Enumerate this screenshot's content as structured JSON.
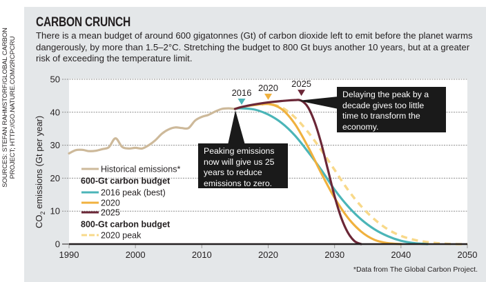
{
  "sources": "SOURCES: STEFAN RAHMSTORF/GLOBAL CARBON PROJECT; HTTP://GO.NATURE.COM/2RCPCRU",
  "title": "CARBON CRUNCH",
  "subtitle": "There is a mean budget of around 600 gigatonnes (Gt) of carbon dioxide left to emit before the planet warms dangerously, by more than 1.5–2°C. Stretching the budget to 800 Gt buys another 10 years, but at a greater risk of exceeding the temperature limit.",
  "footnote": "*Data from The Global Carbon Project.",
  "callouts": {
    "left": "Peaking emissions now will give us 25 years to reduce emissions to zero.",
    "right": "Delaying the peak by a decade gives too little time to transform the economy."
  },
  "colors": {
    "historical": "#cdb99a",
    "peak2016": "#4bb5b8",
    "peak2020": "#f0b13e",
    "peak2025": "#6b2737",
    "peak2020_800": "#f8d98a"
  },
  "chart_data": {
    "type": "line",
    "title": "CARBON CRUNCH",
    "xlabel": "",
    "ylabel": "CO2 emissions (Gt per year)",
    "ylabel_main": "CO",
    "ylabel_sub": "2",
    "ylabel_rest": " emissions (Gt per year)",
    "xlim": [
      1990,
      2050
    ],
    "ylim": [
      0,
      50
    ],
    "x_ticks": [
      "1990",
      "2000",
      "2010",
      "2020",
      "2030",
      "2040",
      "2050"
    ],
    "y_ticks": [
      "0",
      "10",
      "20",
      "30",
      "40",
      "50"
    ],
    "grid": "horizontal dotted",
    "legend": {
      "placement": "bottom-left",
      "items": [
        {
          "type": "entry",
          "label": "Historical emissions*",
          "series": "historical"
        },
        {
          "type": "header",
          "label": "600-Gt carbon budget"
        },
        {
          "type": "entry",
          "label": "2016 peak (best)",
          "series": "peak2016"
        },
        {
          "type": "entry",
          "label": "2020",
          "series": "peak2020"
        },
        {
          "type": "entry",
          "label": "2025",
          "series": "peak2025"
        },
        {
          "type": "header",
          "label": "800-Gt carbon budget"
        },
        {
          "type": "entry",
          "label": "2020 peak",
          "series": "peak2020_800"
        }
      ]
    },
    "peak_markers": [
      {
        "label": "2016",
        "year": 2016,
        "value": 41,
        "series": "peak2016"
      },
      {
        "label": "2020",
        "year": 2020,
        "value": 42.5,
        "series": "peak2020"
      },
      {
        "label": "2025",
        "year": 2025,
        "value": 43.7,
        "series": "peak2025"
      }
    ],
    "series": [
      {
        "name": "Historical emissions",
        "key": "historical",
        "style": "solid",
        "x": [
          1990,
          1991,
          1992,
          1993,
          1994,
          1995,
          1996,
          1997,
          1998,
          1999,
          2000,
          2001,
          2002,
          2003,
          2004,
          2005,
          2006,
          2007,
          2008,
          2009,
          2010,
          2011,
          2012,
          2013,
          2014,
          2015
        ],
        "y": [
          27.5,
          28.5,
          28.6,
          28.2,
          28.3,
          28.8,
          29.4,
          32.1,
          29.5,
          29.0,
          29.2,
          29.0,
          30.0,
          31.5,
          33.5,
          34.8,
          35.4,
          35.2,
          35.2,
          37.5,
          38.6,
          39.2,
          40.2,
          41.0,
          41.2,
          41.0
        ]
      },
      {
        "name": "2016 peak (best)",
        "key": "peak2016",
        "style": "solid",
        "x": [
          2015,
          2016,
          2018,
          2020,
          2022,
          2024,
          2026,
          2028,
          2030,
          2032,
          2034,
          2036,
          2038,
          2040,
          2042,
          2044
        ],
        "y": [
          41.0,
          41.2,
          40.8,
          39.3,
          36.8,
          33.0,
          28.0,
          22.5,
          16.5,
          11.5,
          7.5,
          4.5,
          2.4,
          1.0,
          0.3,
          0
        ]
      },
      {
        "name": "2020",
        "key": "peak2020",
        "style": "solid",
        "x": [
          2015,
          2016,
          2018,
          2020,
          2022,
          2024,
          2026,
          2028,
          2030,
          2032,
          2034,
          2036,
          2038,
          2040
        ],
        "y": [
          41.0,
          41.6,
          42.2,
          42.5,
          41.0,
          36.5,
          29.5,
          21.5,
          14.0,
          8.0,
          3.8,
          1.3,
          0.3,
          0
        ]
      },
      {
        "name": "2025",
        "key": "peak2025",
        "style": "solid",
        "x": [
          2015,
          2016,
          2018,
          2020,
          2022,
          2024,
          2025,
          2026,
          2027,
          2028,
          2029,
          2030,
          2031,
          2032,
          2033,
          2034
        ],
        "y": [
          41.0,
          41.6,
          42.4,
          43.0,
          43.4,
          43.7,
          43.5,
          41.5,
          37.0,
          30.5,
          22.5,
          14.5,
          8.0,
          3.5,
          0.9,
          0
        ]
      },
      {
        "name": "800-Gt 2020 peak",
        "key": "peak2020_800",
        "style": "dashed",
        "x": [
          2019,
          2020,
          2022,
          2024,
          2026,
          2028,
          2030,
          2032,
          2034,
          2036,
          2038,
          2040,
          2042,
          2044,
          2046,
          2048,
          2050
        ],
        "y": [
          42.3,
          42.5,
          41.5,
          38.5,
          34.0,
          28.5,
          22.5,
          16.5,
          11.5,
          7.5,
          4.5,
          2.5,
          1.3,
          0.6,
          0.2,
          0,
          0
        ]
      }
    ]
  }
}
